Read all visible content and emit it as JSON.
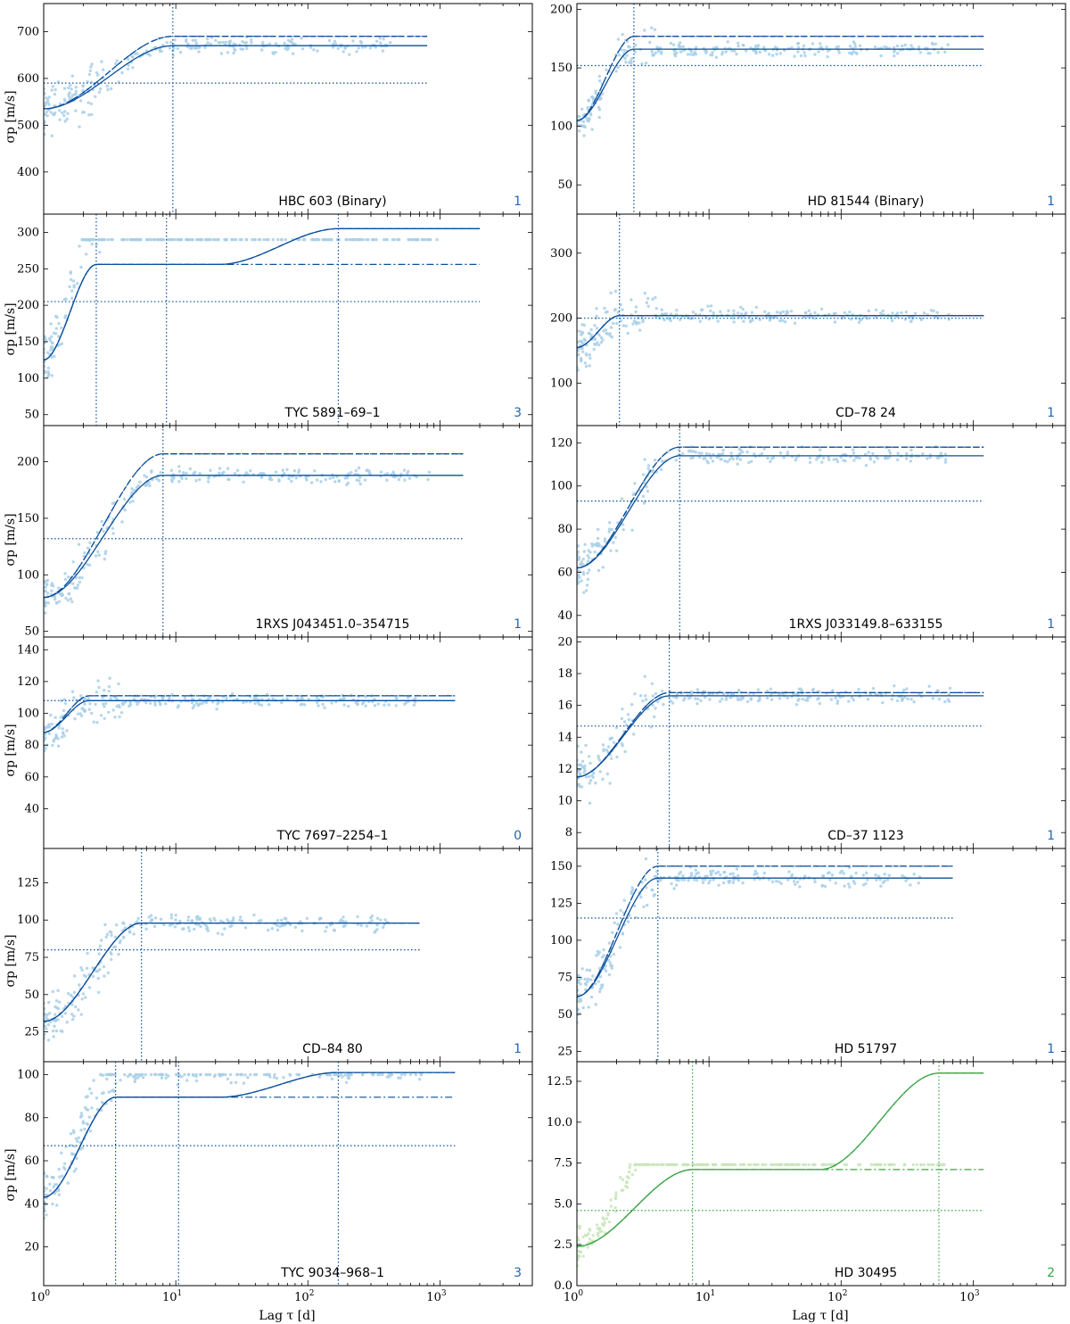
{
  "figure": {
    "ylabel": "σp [m/s]",
    "xlabel": "Lag τ [d]",
    "x_tick_labels": [
      "10^0",
      "10^1",
      "10^2",
      "10^3"
    ],
    "colors": {
      "blue_points": "#a9cfe6",
      "blue_line": "#0b4f9c",
      "green_points": "#c7e6b8",
      "green_line": "#3aa547",
      "count_blue": "#2166b0",
      "count_green": "#3aa547"
    }
  },
  "chart_data": [
    {
      "type": "scatter",
      "title": "HBC 603 (Binary)",
      "count": "1",
      "theme": "blue",
      "xscale": "log",
      "xlim": [
        1,
        5000
      ],
      "ylim": [
        310,
        760
      ],
      "yticks": [
        400,
        500,
        600,
        700
      ],
      "sigma_plateau": 670,
      "sigma_alt": 690,
      "sigma_dotted": 590,
      "curve_start": 535,
      "vlines": [
        9.5
      ],
      "x_end": 800,
      "cloud_low": 340,
      "cloud_high": 700
    },
    {
      "type": "scatter",
      "title": "HD 81544 (Binary)",
      "count": "1",
      "theme": "blue",
      "xscale": "log",
      "xlim": [
        1,
        5000
      ],
      "ylim": [
        25,
        205
      ],
      "yticks": [
        50,
        100,
        150,
        200
      ],
      "sigma_plateau": 166,
      "sigma_alt": 177,
      "sigma_dotted": 152,
      "curve_start": 105,
      "vlines": [
        2.7
      ],
      "x_end": 1200,
      "cloud_low": 80,
      "cloud_high": 195
    },
    {
      "type": "scatter",
      "title": "TYC 5891–69–1",
      "count": "3",
      "theme": "blue",
      "xscale": "log",
      "xlim": [
        1,
        5000
      ],
      "ylim": [
        35,
        325
      ],
      "yticks": [
        50,
        100,
        150,
        200,
        250,
        300
      ],
      "sigma_plateau": 305,
      "sigma_alt": 256,
      "sigma_dotted": 205,
      "curve_start": 125,
      "vlines": [
        2.5,
        8.5,
        170
      ],
      "x_end": 2000,
      "cloud_low": 45,
      "cloud_high": 290
    },
    {
      "type": "scatter",
      "title": "CD–78 24",
      "count": "1",
      "theme": "blue",
      "xscale": "log",
      "xlim": [
        1,
        5000
      ],
      "ylim": [
        35,
        360
      ],
      "yticks": [
        100,
        200,
        300
      ],
      "sigma_plateau": 204,
      "sigma_alt": 204,
      "sigma_dotted": 200,
      "curve_start": 155,
      "vlines": [
        2.1
      ],
      "x_end": 1200,
      "cloud_low": 55,
      "cloud_high": 300
    },
    {
      "type": "scatter",
      "title": "1RXS J043451.0–354715",
      "count": "1",
      "theme": "blue",
      "xscale": "log",
      "xlim": [
        1,
        5000
      ],
      "ylim": [
        45,
        232
      ],
      "yticks": [
        50,
        100,
        150,
        200
      ],
      "sigma_plateau": 188,
      "sigma_alt": 207,
      "sigma_dotted": 132,
      "curve_start": 80,
      "vlines": [
        8
      ],
      "x_end": 1500,
      "cloud_low": 52,
      "cloud_high": 205
    },
    {
      "type": "scatter",
      "title": "1RXS J033149.8–633155",
      "count": "1",
      "theme": "blue",
      "xscale": "log",
      "xlim": [
        1,
        5000
      ],
      "ylim": [
        30,
        128
      ],
      "yticks": [
        40,
        60,
        80,
        100,
        120
      ],
      "sigma_plateau": 114,
      "sigma_alt": 118,
      "sigma_dotted": 93,
      "curve_start": 62,
      "vlines": [
        6
      ],
      "x_end": 1200,
      "cloud_low": 48,
      "cloud_high": 122
    },
    {
      "type": "scatter",
      "title": "TYC 7697–2254–1",
      "count": "0",
      "theme": "blue",
      "xscale": "log",
      "xlim": [
        1,
        5000
      ],
      "ylim": [
        15,
        148
      ],
      "yticks": [
        40,
        60,
        80,
        100,
        120,
        140
      ],
      "sigma_plateau": 108,
      "sigma_alt": 111,
      "sigma_dotted": 108,
      "curve_start": 88,
      "vlines": [],
      "x_end": 1300,
      "cloud_low": 55,
      "cloud_high": 142
    },
    {
      "type": "scatter",
      "title": "CD–37 1123",
      "count": "1",
      "theme": "blue",
      "xscale": "log",
      "xlim": [
        1,
        5000
      ],
      "ylim": [
        7,
        20.3
      ],
      "yticks": [
        8,
        10,
        12,
        14,
        16,
        18,
        20
      ],
      "sigma_plateau": 16.6,
      "sigma_alt": 16.8,
      "sigma_dotted": 14.7,
      "curve_start": 11.5,
      "vlines": [
        5
      ],
      "x_end": 1200,
      "cloud_low": 8,
      "cloud_high": 19
    },
    {
      "type": "scatter",
      "title": "CD–84 80",
      "count": "1",
      "theme": "blue",
      "xscale": "log",
      "xlim": [
        1,
        5000
      ],
      "ylim": [
        5,
        148
      ],
      "yticks": [
        25,
        50,
        75,
        100,
        125
      ],
      "sigma_plateau": 98,
      "sigma_alt": 98,
      "sigma_dotted": 80,
      "curve_start": 32,
      "vlines": [
        5.5
      ],
      "x_end": 700,
      "cloud_low": 12,
      "cloud_high": 138
    },
    {
      "type": "scatter",
      "title": "HD 51797",
      "count": "1",
      "theme": "blue",
      "xscale": "log",
      "xlim": [
        1,
        5000
      ],
      "ylim": [
        18,
        162
      ],
      "yticks": [
        25,
        50,
        75,
        100,
        125,
        150
      ],
      "sigma_plateau": 142,
      "sigma_alt": 150,
      "sigma_dotted": 115,
      "curve_start": 62,
      "vlines": [
        4.1
      ],
      "x_end": 700,
      "cloud_low": 30,
      "cloud_high": 155
    },
    {
      "type": "scatter",
      "title": "TYC 9034–968–1",
      "count": "3",
      "theme": "blue",
      "xscale": "log",
      "xlim": [
        1,
        5000
      ],
      "ylim": [
        2,
        106
      ],
      "yticks": [
        20,
        40,
        60,
        80,
        100
      ],
      "sigma_plateau": 101,
      "sigma_alt": 89.5,
      "sigma_dotted": 67,
      "curve_start": 43,
      "vlines": [
        3.5,
        10.5,
        170
      ],
      "x_end": 1300,
      "cloud_low": 5,
      "cloud_high": 100
    },
    {
      "type": "scatter",
      "title": "HD 30495",
      "count": "2",
      "theme": "green",
      "xscale": "log",
      "xlim": [
        1,
        5000
      ],
      "ylim": [
        0,
        13.7
      ],
      "yticks": [
        0.0,
        2.5,
        5.0,
        7.5,
        10.0,
        12.5
      ],
      "sigma_plateau": 13.0,
      "sigma_alt": 7.1,
      "sigma_dotted": 4.6,
      "curve_start": 2.4,
      "vlines": [
        7.5,
        550
      ],
      "x_end": 1200,
      "cloud_low": 1.0,
      "cloud_high": 7.4
    }
  ]
}
